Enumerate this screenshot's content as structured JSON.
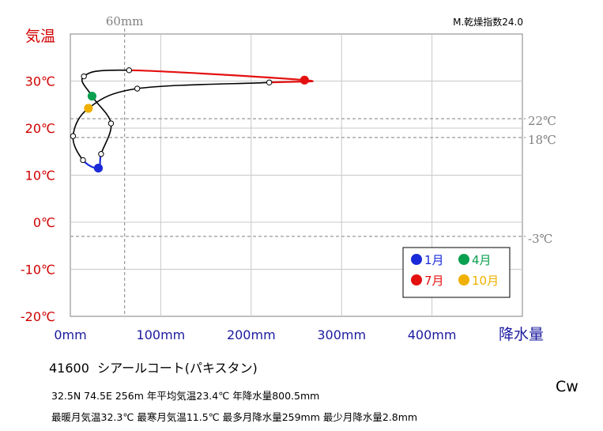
{
  "chart_data": {
    "type": "line",
    "subtitle_label": "M.乾燥指数24.0",
    "ylabel": "気温",
    "xlabel": "降水量",
    "xlim": [
      0,
      500
    ],
    "ylim": [
      -20,
      40
    ],
    "yticks": [
      {
        "value": 30,
        "label": "30℃"
      },
      {
        "value": 20,
        "label": "20℃"
      },
      {
        "value": 10,
        "label": "10℃"
      },
      {
        "value": 0,
        "label": "0℃"
      },
      {
        "value": -10,
        "label": "-10℃"
      },
      {
        "value": -20,
        "label": "-20℃"
      }
    ],
    "xticks": [
      {
        "value": 0,
        "label": "0mm"
      },
      {
        "value": 100,
        "label": "100mm"
      },
      {
        "value": 200,
        "label": "200mm"
      },
      {
        "value": 300,
        "label": "300mm"
      },
      {
        "value": 400,
        "label": "400mm"
      }
    ],
    "reference_lines": [
      {
        "axis": "y",
        "value": 22,
        "label": "22℃"
      },
      {
        "axis": "y",
        "value": 18,
        "label": "18℃"
      },
      {
        "axis": "y",
        "value": -3,
        "label": "-3℃"
      },
      {
        "axis": "x",
        "value": 60,
        "label": "60mm"
      }
    ],
    "months": [
      {
        "month": 1,
        "precip": 31,
        "temp": 11.5
      },
      {
        "month": 2,
        "precip": 34,
        "temp": 14.5
      },
      {
        "month": 3,
        "precip": 45,
        "temp": 21.0
      },
      {
        "month": 4,
        "precip": 24,
        "temp": 26.8
      },
      {
        "month": 5,
        "precip": 15,
        "temp": 31.0
      },
      {
        "month": 6,
        "precip": 65,
        "temp": 32.3
      },
      {
        "month": 7,
        "precip": 259,
        "temp": 30.2
      },
      {
        "month": 8,
        "precip": 220,
        "temp": 29.7
      },
      {
        "month": 9,
        "precip": 74,
        "temp": 28.4
      },
      {
        "month": 10,
        "precip": 20,
        "temp": 24.2
      },
      {
        "month": 11,
        "precip": 3,
        "temp": 18.3
      },
      {
        "month": 12,
        "precip": 14,
        "temp": 13.2
      }
    ],
    "legend": {
      "placement": "bottom-right",
      "entries": [
        {
          "month": 1,
          "label": "1月",
          "color": "#1a2ad8"
        },
        {
          "month": 4,
          "label": "4月",
          "color": "#0aa050"
        },
        {
          "month": 7,
          "label": "7月",
          "color": "#e41010"
        },
        {
          "month": 10,
          "label": "10月",
          "color": "#f0b000"
        }
      ]
    },
    "segment_colors": {
      "winter": "#1a2ad8",
      "summer": "#e41010",
      "other": "#000000"
    },
    "grid": true
  },
  "station": {
    "id": "41600",
    "name": "シアールコート(パキスタン)",
    "climate_class": "Cw",
    "info_line1": "32.5N  74.5E 256m  年平均気温23.4℃ 年降水量800.5mm",
    "info_line2": "最暖月気温32.3℃ 最寒月気温11.5℃ 最多月降水量259mm 最少月降水量2.8mm"
  }
}
